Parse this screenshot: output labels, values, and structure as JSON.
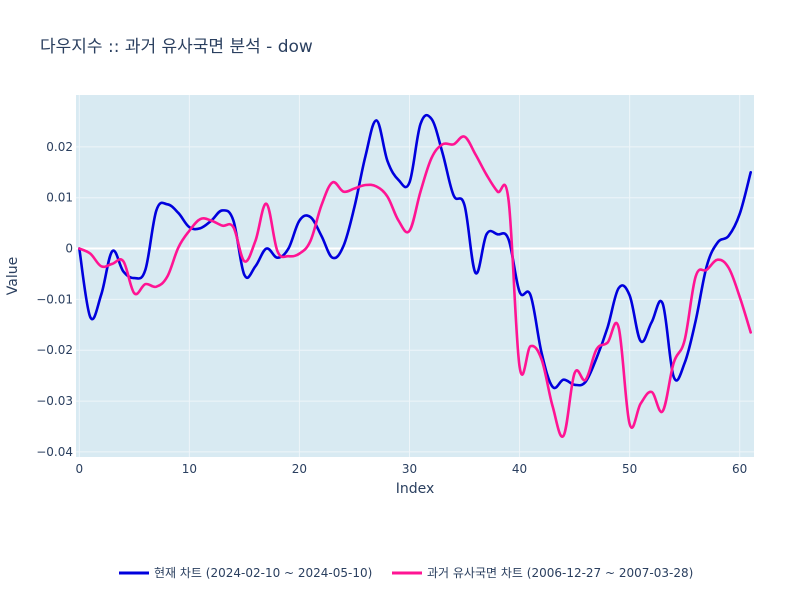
{
  "chart_data": {
    "type": "line",
    "title": "다우지수 :: 과거 유사국면 분석 - dow",
    "xlabel": "Index",
    "ylabel": "Value",
    "xlim": [
      -0.3,
      61.3
    ],
    "ylim": [
      -0.041,
      0.0302
    ],
    "x_ticks": [
      0,
      10,
      20,
      30,
      40,
      50,
      60
    ],
    "x_tick_labels": [
      "0",
      "10",
      "20",
      "30",
      "40",
      "50",
      "60"
    ],
    "y_ticks": [
      -0.04,
      -0.03,
      -0.02,
      -0.01,
      0,
      0.01,
      0.02
    ],
    "y_tick_labels": [
      "−0.04",
      "−0.03",
      "−0.02",
      "−0.01",
      "0",
      "0.01",
      "0.02"
    ],
    "grid": true,
    "legend_position": "bottom-center",
    "plot_background": "#d8eaf2",
    "x": [
      0,
      1,
      2,
      3,
      4,
      5,
      6,
      7,
      8,
      9,
      10,
      11,
      12,
      13,
      14,
      15,
      16,
      17,
      18,
      19,
      20,
      21,
      22,
      23,
      24,
      25,
      26,
      27,
      28,
      29,
      30,
      31,
      32,
      33,
      34,
      35,
      36,
      37,
      38,
      39,
      40,
      41,
      42,
      43,
      44,
      45,
      46,
      47,
      48,
      49,
      50,
      51,
      52,
      53,
      54,
      55,
      56,
      57,
      58,
      59,
      60,
      61
    ],
    "series": [
      {
        "name": "현재 차트 (2024-02-10 ~ 2024-05-10)",
        "color": "#0000dd",
        "values": [
          0.0,
          -0.0135,
          -0.009,
          -0.0005,
          -0.0045,
          -0.0058,
          -0.0042,
          0.0075,
          0.0087,
          0.007,
          0.0042,
          0.004,
          0.0055,
          0.0075,
          0.0055,
          -0.0052,
          -0.0035,
          0.0,
          -0.0018,
          0.0,
          0.0055,
          0.0062,
          0.0025,
          -0.0018,
          0.0005,
          0.0082,
          0.0182,
          0.0252,
          0.0172,
          0.0135,
          0.013,
          0.0245,
          0.0255,
          0.0188,
          0.0105,
          0.0085,
          -0.0048,
          0.0028,
          0.0028,
          0.0018,
          -0.0085,
          -0.0092,
          -0.0205,
          -0.0272,
          -0.0258,
          -0.0268,
          -0.0262,
          -0.0215,
          -0.0155,
          -0.0078,
          -0.0092,
          -0.0182,
          -0.0145,
          -0.0108,
          -0.0252,
          -0.0225,
          -0.0142,
          -0.0035,
          0.0012,
          0.0025,
          0.0068,
          0.015
        ]
      },
      {
        "name": "과거 유사국면 차트 (2006-12-27 ~ 2007-03-28)",
        "color": "#ff1493",
        "values": [
          0.0,
          -0.001,
          -0.0035,
          -0.003,
          -0.0025,
          -0.0088,
          -0.007,
          -0.0075,
          -0.0055,
          0.0002,
          0.0035,
          0.0058,
          0.0055,
          0.0045,
          0.0042,
          -0.0025,
          0.0015,
          0.0088,
          -0.0005,
          -0.0015,
          -0.001,
          0.0015,
          0.0085,
          0.013,
          0.0112,
          0.0118,
          0.0125,
          0.0122,
          0.0102,
          0.0055,
          0.0035,
          0.0112,
          0.0178,
          0.0205,
          0.0205,
          0.022,
          0.0185,
          0.0145,
          0.0112,
          0.0095,
          -0.0232,
          -0.0192,
          -0.0218,
          -0.031,
          -0.0368,
          -0.0245,
          -0.0258,
          -0.0198,
          -0.0185,
          -0.0155,
          -0.0345,
          -0.0305,
          -0.0282,
          -0.032,
          -0.0225,
          -0.018,
          -0.0055,
          -0.0042,
          -0.0022,
          -0.0038,
          -0.0095,
          -0.0165
        ]
      }
    ]
  }
}
